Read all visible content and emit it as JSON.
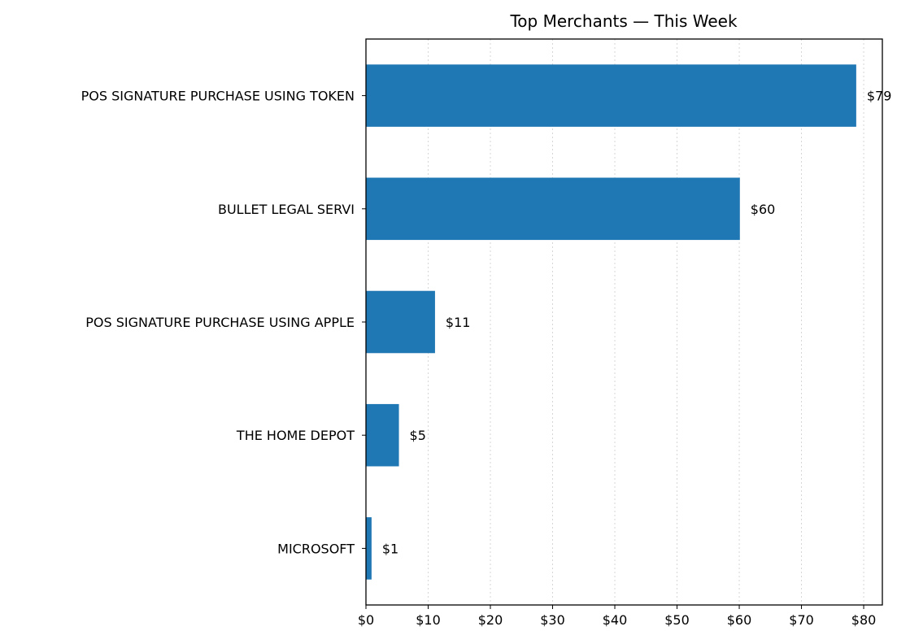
{
  "chart_data": {
    "type": "bar",
    "orientation": "horizontal",
    "title": "Top Merchants — This Week",
    "xlabel": "",
    "ylabel": "",
    "categories": [
      "POS SIGNATURE PURCHASE USING TOKEN",
      "BULLET LEGAL SERVI",
      "POS SIGNATURE PURCHASE USING APPLE",
      "THE HOME DEPOT",
      "MICROSOFT"
    ],
    "values": [
      78.8,
      60.1,
      11.1,
      5.3,
      0.9
    ],
    "data_labels": [
      "$79",
      "$60",
      "$11",
      "$5",
      "$1"
    ],
    "xlim": [
      0,
      83
    ],
    "x_ticks": [
      0,
      10,
      20,
      30,
      40,
      50,
      60,
      70,
      80
    ],
    "x_tick_labels": [
      "$0",
      "$10",
      "$20",
      "$30",
      "$40",
      "$50",
      "$60",
      "$70",
      "$80"
    ],
    "grid": "vertical dotted",
    "bar_color": "#1f77b4"
  }
}
